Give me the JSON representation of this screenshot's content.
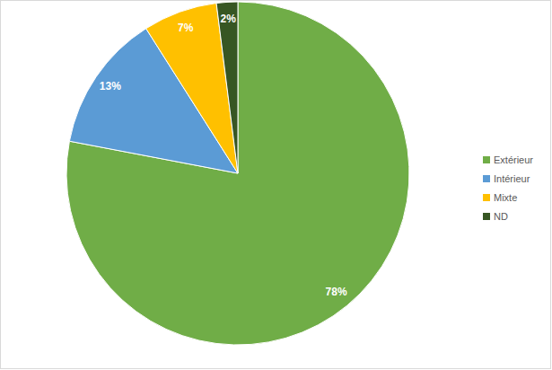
{
  "chart_data": {
    "type": "pie",
    "categories": [
      "Extérieur",
      "Intérieur",
      "Mixte",
      "ND"
    ],
    "values": [
      78,
      13,
      7,
      2
    ],
    "value_labels": [
      "78%",
      "13%",
      "7%",
      "2%"
    ],
    "colors": [
      "#70ad47",
      "#5b9bd5",
      "#ffc000",
      "#375623"
    ],
    "data_labels": true,
    "legend": "right"
  }
}
